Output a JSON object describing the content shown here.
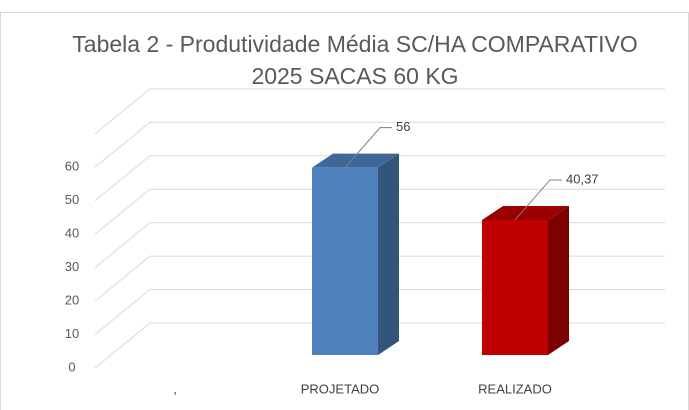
{
  "chart_data": {
    "type": "bar3d",
    "title": [
      "Tabela 2 - Produtividade Média SC/HA COMPARATIVO",
      "2025 SACAS 60 KG"
    ],
    "categories": [
      ",",
      "PROJETADO",
      "REALIZADO"
    ],
    "values": [
      null,
      56,
      40.37
    ],
    "value_labels": [
      null,
      "56",
      "40,37"
    ],
    "colors": [
      null,
      "#4f81bd",
      "#c00000"
    ],
    "ylim": [
      0,
      70
    ],
    "yticks": [
      0,
      10,
      20,
      30,
      40,
      50,
      60
    ],
    "grid": true
  }
}
